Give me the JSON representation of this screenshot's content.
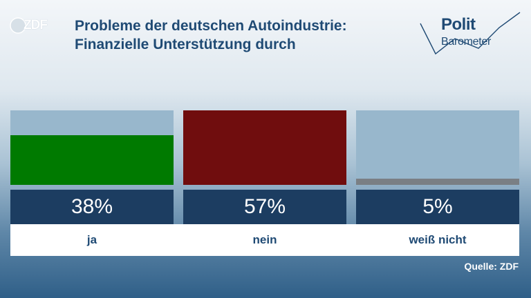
{
  "header": {
    "logo": "ZDF",
    "title_line1": "Probleme der deutschen Autoindustrie:",
    "title_line2": "Finanzielle Unterstützung durch",
    "brand_line1": "Polit",
    "brand_line2": "Barometer"
  },
  "chart_data": {
    "type": "bar",
    "categories": [
      "ja",
      "nein",
      "weiß nicht"
    ],
    "values": [
      38,
      57,
      5
    ],
    "value_labels": [
      "38%",
      "57%",
      "5%"
    ],
    "colors": [
      "#007a00",
      "#700d0e",
      "#7a7f84"
    ],
    "ylim": [
      0,
      57
    ]
  },
  "source": "Quelle: ZDF"
}
